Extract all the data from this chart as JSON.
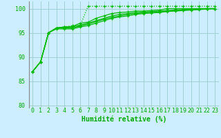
{
  "background_color": "#cceeff",
  "grid_color": "#99cccc",
  "line_color": "#00bb00",
  "xlabel": "Humidité relative (%)",
  "xlabel_color": "#00aa00",
  "tick_color": "#00aa00",
  "ylim": [
    79.5,
    101.5
  ],
  "xlim": [
    -0.5,
    23.5
  ],
  "yticks": [
    80,
    85,
    90,
    95,
    100
  ],
  "xtick_labels": [
    "0",
    "1",
    "2",
    "3",
    "4",
    "5",
    "6",
    "7",
    "8",
    "9",
    "10",
    "11",
    "12",
    "13",
    "14",
    "15",
    "16",
    "17",
    "18",
    "19",
    "20",
    "21",
    "22",
    "23"
  ],
  "series": [
    {
      "style": "dotted",
      "data": [
        87,
        89,
        95,
        96,
        96.2,
        96.5,
        96.5,
        100.5,
        100.5,
        100.5,
        100.5,
        100.5,
        100.5,
        100.5,
        100.5,
        100.5,
        100.5,
        100.5,
        100.5,
        100.5,
        100.5,
        100.5,
        100.5,
        100.5
      ]
    },
    {
      "style": "solid",
      "data": [
        87,
        89,
        95,
        96,
        96.2,
        96.3,
        97.0,
        97.2,
        98.0,
        98.5,
        99.0,
        99.2,
        99.3,
        99.5,
        99.5,
        99.6,
        99.7,
        100,
        100,
        100,
        100,
        100,
        100,
        100
      ]
    },
    {
      "style": "solid",
      "data": [
        87,
        89,
        95,
        96,
        96.2,
        96.2,
        96.6,
        97.0,
        97.5,
        98.0,
        98.5,
        98.8,
        99.0,
        99.2,
        99.3,
        99.4,
        99.5,
        99.6,
        99.7,
        99.8,
        99.9,
        100,
        100,
        100
      ]
    },
    {
      "style": "solid",
      "data": [
        87,
        89,
        95,
        96,
        96.0,
        96.0,
        96.4,
        96.8,
        97.3,
        97.8,
        98.2,
        98.5,
        98.8,
        99.0,
        99.1,
        99.2,
        99.3,
        99.5,
        99.6,
        99.7,
        99.8,
        99.9,
        100,
        100
      ]
    },
    {
      "style": "solid",
      "data": [
        87,
        89,
        95,
        95.8,
        95.8,
        95.8,
        96.2,
        96.5,
        97.0,
        97.5,
        98.0,
        98.3,
        98.5,
        98.8,
        99.0,
        99.1,
        99.2,
        99.4,
        99.5,
        99.6,
        99.7,
        99.8,
        99.9,
        100
      ]
    }
  ],
  "marker": "+",
  "markersize": 3,
  "linewidth": 0.9,
  "fontsize_xlabel": 7,
  "fontsize_ticks": 6
}
